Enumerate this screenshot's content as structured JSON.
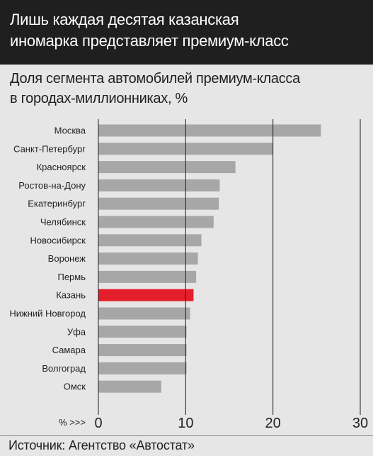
{
  "header": {
    "title_line1": "Лишь каждая десятая казанская",
    "title_line2": "иномарка представляет премиум-класс"
  },
  "subtitle": {
    "line1": "Доля сегмента автомобилей премиум-класса",
    "line2": "в городах-миллионниках, %"
  },
  "footer": {
    "source": "Источник: Агентство «Автостат»"
  },
  "colors": {
    "bar": "#a7a7a7",
    "highlight": "#e41e2b",
    "grid": "#1f1f1f",
    "background": "#e6e6e6"
  },
  "chart_data": {
    "type": "bar",
    "orientation": "horizontal",
    "categories": [
      "Москва",
      "Санкт-Петербург",
      "Красноярск",
      "Ростов-на-Дону",
      "Екатеринбург",
      "Челябинск",
      "Новосибирск",
      "Воронеж",
      "Пермь",
      "Казань",
      "Нижний Новгород",
      "Уфа",
      "Самара",
      "Волгоград",
      "Омск"
    ],
    "values": [
      25.5,
      20.0,
      15.7,
      13.9,
      13.8,
      13.2,
      11.8,
      11.4,
      11.2,
      10.9,
      10.5,
      10.1,
      10.1,
      10.1,
      7.2
    ],
    "highlight": "Казань",
    "xlim": [
      0,
      30
    ],
    "xticks": [
      0,
      10,
      20,
      30
    ],
    "xunit": "% >>>",
    "grid": true
  }
}
